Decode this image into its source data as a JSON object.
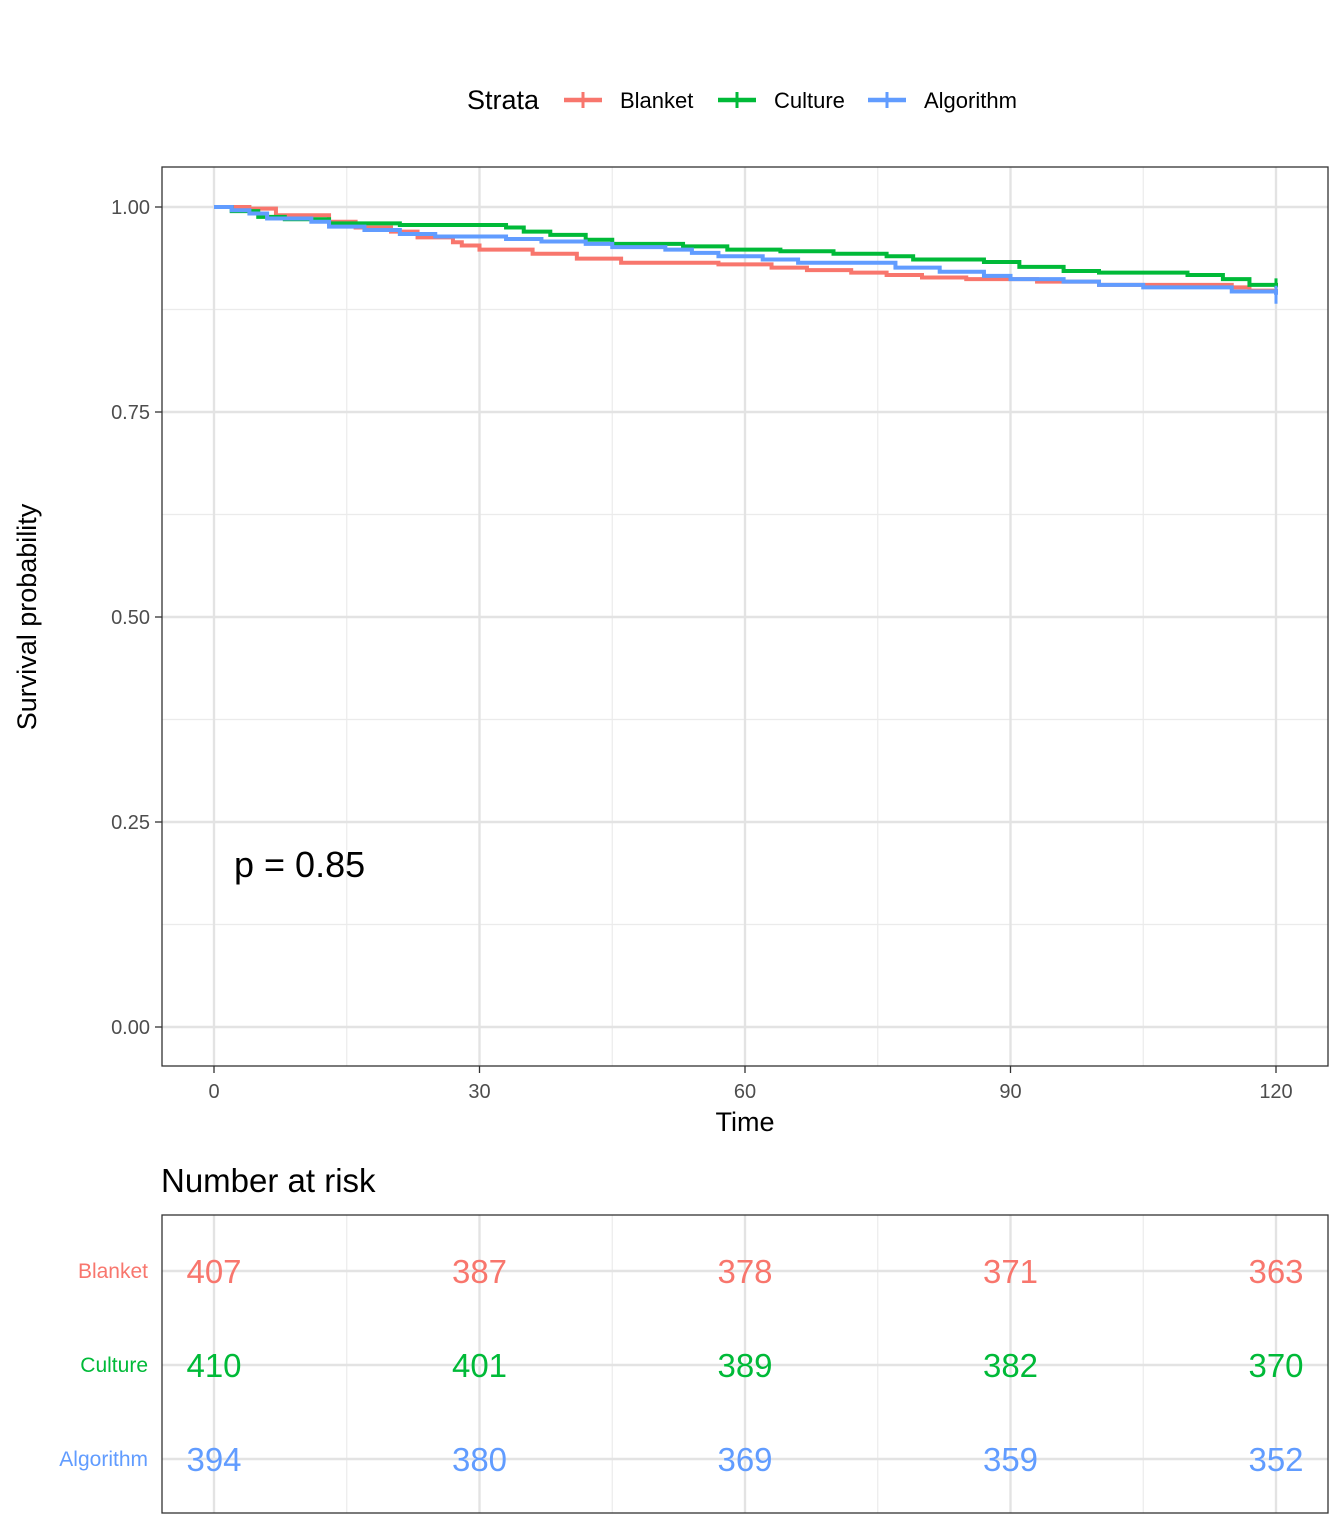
{
  "chart_data": {
    "type": "line",
    "subtype": "kaplan-meier survival (step)",
    "legend": {
      "title": "Strata",
      "placement": "top"
    },
    "xlabel": "Time",
    "ylabel": "Survival probability",
    "xlim": [
      0,
      120
    ],
    "ylim": [
      0,
      1
    ],
    "x_ticks": [
      "0",
      "30",
      "60",
      "90",
      "120"
    ],
    "y_ticks": [
      "0.00",
      "0.25",
      "0.50",
      "0.75",
      "1.00"
    ],
    "grid": true,
    "annotation": "p = 0.85",
    "series": [
      {
        "name": "Blanket",
        "color": "#F8766D",
        "x": [
          0,
          4,
          7,
          13,
          16,
          20,
          23,
          27,
          28,
          30,
          36,
          41,
          46,
          57,
          63,
          67,
          72,
          76,
          80,
          85,
          93,
          100,
          115,
          117,
          120
        ],
        "y": [
          1.0,
          0.998,
          0.99,
          0.982,
          0.975,
          0.97,
          0.963,
          0.957,
          0.953,
          0.948,
          0.943,
          0.937,
          0.932,
          0.93,
          0.926,
          0.923,
          0.92,
          0.917,
          0.914,
          0.912,
          0.909,
          0.905,
          0.902,
          0.898,
          0.895
        ]
      },
      {
        "name": "Culture",
        "color": "#00BA38",
        "x": [
          0,
          2,
          5,
          8,
          13,
          21,
          33,
          35,
          38,
          42,
          45,
          53,
          58,
          64,
          70,
          76,
          79,
          87,
          91,
          96,
          100,
          110,
          114,
          117,
          120
        ],
        "y": [
          1.0,
          0.995,
          0.988,
          0.985,
          0.98,
          0.978,
          0.975,
          0.97,
          0.966,
          0.96,
          0.955,
          0.952,
          0.948,
          0.946,
          0.943,
          0.94,
          0.936,
          0.933,
          0.927,
          0.922,
          0.92,
          0.917,
          0.912,
          0.905,
          0.902
        ]
      },
      {
        "name": "Algorithm",
        "color": "#619CFF",
        "x": [
          0,
          2,
          4,
          6,
          11,
          13,
          17,
          21,
          25,
          33,
          37,
          42,
          45,
          51,
          54,
          57,
          62,
          66,
          77,
          82,
          87,
          90,
          96,
          100,
          105,
          115,
          120
        ],
        "y": [
          1.0,
          0.996,
          0.992,
          0.986,
          0.982,
          0.976,
          0.972,
          0.967,
          0.964,
          0.961,
          0.958,
          0.955,
          0.951,
          0.948,
          0.944,
          0.94,
          0.936,
          0.932,
          0.926,
          0.921,
          0.916,
          0.912,
          0.909,
          0.905,
          0.902,
          0.897,
          0.893
        ]
      }
    ]
  },
  "risk_table": {
    "title": "Number at risk",
    "times": [
      0,
      30,
      60,
      90,
      120
    ],
    "rows": [
      {
        "name": "Blanket",
        "color": "#F8766D",
        "values": [
          "407",
          "387",
          "378",
          "371",
          "363"
        ]
      },
      {
        "name": "Culture",
        "color": "#00BA38",
        "values": [
          "410",
          "401",
          "389",
          "382",
          "370"
        ]
      },
      {
        "name": "Algorithm",
        "color": "#619CFF",
        "values": [
          "394",
          "380",
          "369",
          "359",
          "352"
        ]
      }
    ]
  }
}
